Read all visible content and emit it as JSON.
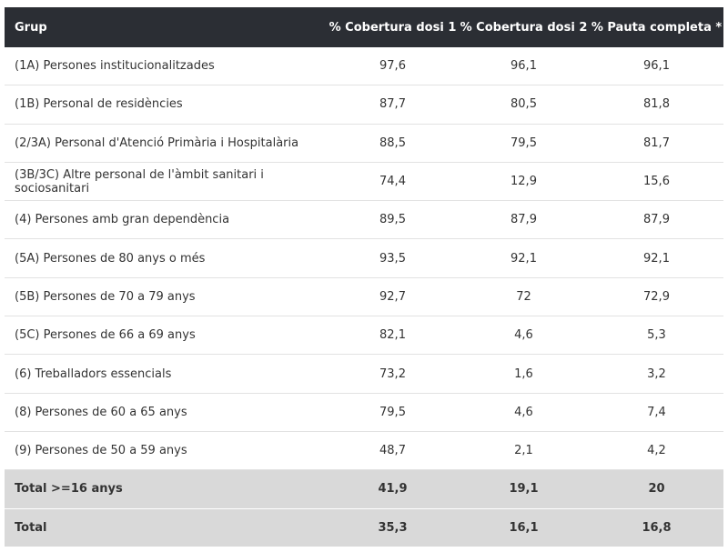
{
  "table": {
    "header": [
      "Grup",
      "% Cobertura dosi 1",
      "% Cobertura dosi 2",
      "% Pauta completa *"
    ],
    "rows": [
      [
        "(1A) Persones institucionalitzades",
        "97,6",
        "96,1",
        "96,1"
      ],
      [
        "(1B) Personal de residències",
        "87,7",
        "80,5",
        "81,8"
      ],
      [
        "(2/3A) Personal d'Atenció Primària i Hospitalària",
        "88,5",
        "79,5",
        "81,7"
      ],
      [
        "(3B/3C) Altre personal de l'àmbit sanitari i sociosanitari",
        "74,4",
        "12,9",
        "15,6"
      ],
      [
        "(4) Persones amb gran dependència",
        "89,5",
        "87,9",
        "87,9"
      ],
      [
        "(5A) Persones de 80 anys o més",
        "93,5",
        "92,1",
        "92,1"
      ],
      [
        "(5B) Persones de 70 a 79 anys",
        "92,7",
        "72",
        "72,9"
      ],
      [
        "(5C) Persones de 66 a 69 anys",
        "82,1",
        "4,6",
        "5,3"
      ],
      [
        "(6) Treballadors essencials",
        "73,2",
        "1,6",
        "3,2"
      ],
      [
        "(8) Persones de 60 a 65 anys",
        "79,5",
        "4,6",
        "7,4"
      ],
      [
        "(9) Persones de 50 a 59 anys",
        "48,7",
        "2,1",
        "4,2"
      ],
      [
        "Total >=16 anys",
        "41,9",
        "19,1",
        "20"
      ],
      [
        "Total",
        "35,3",
        "16,1",
        "16,8"
      ]
    ]
  }
}
